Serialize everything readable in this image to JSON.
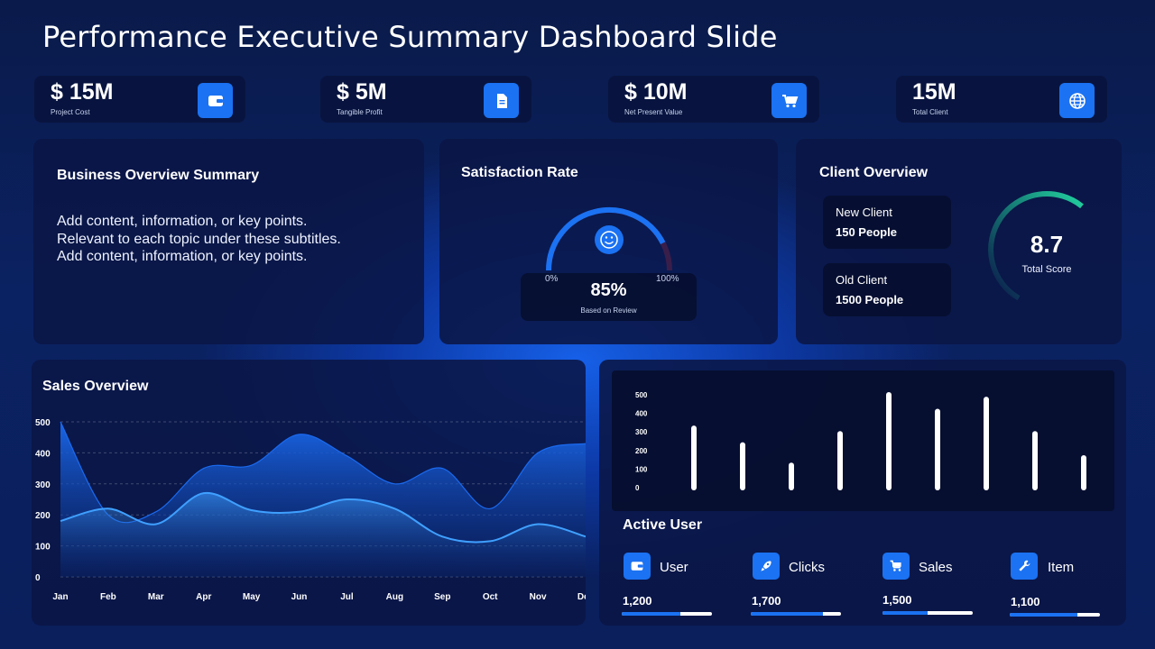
{
  "slide_title": "Performance Executive Summary Dashboard Slide",
  "kpis": [
    {
      "value": "$ 15M",
      "label": "Project Cost",
      "icon": "wallet-icon"
    },
    {
      "value": "$ 5M",
      "label": "Tangible Profit",
      "icon": "document-icon"
    },
    {
      "value": "$ 10M",
      "label": "Net Present Value",
      "icon": "cart-icon"
    },
    {
      "value": "15M",
      "label": "Total Client",
      "icon": "globe-icon"
    }
  ],
  "business": {
    "title": "Business Overview Summary",
    "lines": [
      "Add content, information, or key points.",
      "Relevant to each topic under these subtitles.",
      "Add content, information, or key points."
    ]
  },
  "satisfaction": {
    "title": "Satisfaction Rate",
    "value": "85%",
    "note": "Based on Review",
    "min_label": "0%",
    "max_label": "100%",
    "fraction": 0.85
  },
  "client_overview": {
    "title": "Client Overview",
    "new_label": "New Client",
    "new_value": "150 People",
    "old_label": "Old Client",
    "old_value": "1500 People",
    "score": "8.7",
    "score_label": "Total Score",
    "score_fraction": 0.7
  },
  "sales": {
    "title": "Sales Overview"
  },
  "active_user": {
    "title": "Active User",
    "items": [
      {
        "label": "User",
        "value": "1,200",
        "icon": "wallet-icon",
        "fraction": 0.65
      },
      {
        "label": "Clicks",
        "value": "1,700",
        "icon": "rocket-icon",
        "fraction": 0.8
      },
      {
        "label": "Sales",
        "value": "1,500",
        "icon": "cart-icon",
        "fraction": 0.5
      },
      {
        "label": "Item",
        "value": "1,100",
        "icon": "wrench-icon",
        "fraction": 0.75
      }
    ]
  },
  "chart_data": [
    {
      "type": "area",
      "title": "Sales Overview",
      "categories": [
        "Jan",
        "Feb",
        "Mar",
        "Apr",
        "May",
        "Jun",
        "Jul",
        "Aug",
        "Sep",
        "Oct",
        "Nov",
        "Dec"
      ],
      "y_ticks": [
        "500",
        "400",
        "300",
        "200",
        "100",
        "0"
      ],
      "ylim": [
        0,
        500
      ],
      "grid": true,
      "series": [
        {
          "values": [
            500,
            200,
            210,
            350,
            360,
            460,
            390,
            300,
            350,
            220,
            400,
            430
          ],
          "color": "#1a6af0"
        },
        {
          "values": [
            180,
            220,
            170,
            270,
            215,
            210,
            250,
            220,
            130,
            115,
            170,
            130
          ],
          "color": "#3fa0ff"
        }
      ]
    },
    {
      "type": "bar",
      "y_ticks": [
        "500",
        "400",
        "300",
        "200",
        "100",
        "0"
      ],
      "ylim": [
        0,
        500
      ],
      "values": [
        320,
        230,
        120,
        290,
        500,
        410,
        475,
        290,
        160
      ]
    }
  ]
}
